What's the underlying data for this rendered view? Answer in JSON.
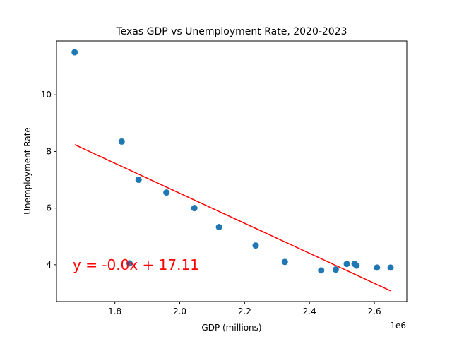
{
  "chart_data": {
    "type": "scatter",
    "title": "Texas GDP vs Unemployment Rate, 2020-2023",
    "xlabel": "GDP (millions)",
    "ylabel": "Unemployment Rate",
    "x_offset_label": "1e6",
    "x_scale": 1000000,
    "xlim": [
      1.62,
      2.7
    ],
    "ylim": [
      2.7,
      11.9
    ],
    "xticks": [
      1.8,
      2.0,
      2.2,
      2.4,
      2.6
    ],
    "xtick_labels": [
      "1.8",
      "2.0",
      "2.2",
      "2.4",
      "2.6"
    ],
    "yticks": [
      4,
      6,
      8,
      10
    ],
    "ytick_labels": [
      "4",
      "6",
      "8",
      "10"
    ],
    "grid": false,
    "marker_color": "#1f77b4",
    "points": [
      {
        "x": 1.676,
        "y": 11.5
      },
      {
        "x": 1.821,
        "y": 8.35
      },
      {
        "x": 1.873,
        "y": 7.0
      },
      {
        "x": 1.845,
        "y": 4.05
      },
      {
        "x": 1.959,
        "y": 6.55
      },
      {
        "x": 2.045,
        "y": 6.0
      },
      {
        "x": 2.121,
        "y": 5.33
      },
      {
        "x": 2.234,
        "y": 4.68
      },
      {
        "x": 2.324,
        "y": 4.1
      },
      {
        "x": 2.436,
        "y": 3.8
      },
      {
        "x": 2.481,
        "y": 3.83
      },
      {
        "x": 2.515,
        "y": 4.03
      },
      {
        "x": 2.539,
        "y": 4.03
      },
      {
        "x": 2.545,
        "y": 3.97
      },
      {
        "x": 2.608,
        "y": 3.9
      },
      {
        "x": 2.65,
        "y": 3.9
      }
    ],
    "trendline": {
      "color": "#ff0000",
      "x": [
        1.676,
        2.65
      ],
      "y": [
        8.24,
        3.08
      ]
    },
    "equation": {
      "text": "y = -0.0x + 17.11",
      "color": "#ff0000"
    }
  }
}
